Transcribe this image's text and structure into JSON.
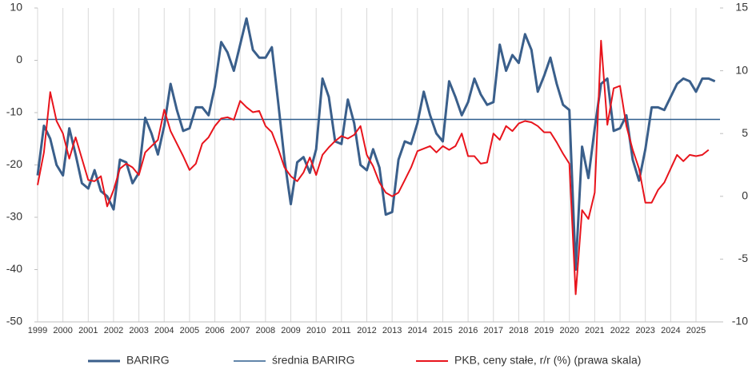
{
  "chart_data": {
    "type": "line",
    "categories": [
      "1999",
      null,
      null,
      null,
      "2000",
      null,
      null,
      null,
      "2001",
      null,
      null,
      null,
      "2002",
      null,
      null,
      null,
      "2003",
      null,
      null,
      null,
      "2004",
      null,
      null,
      null,
      "2005",
      null,
      null,
      null,
      "2006",
      null,
      null,
      null,
      "2007",
      null,
      null,
      null,
      "2008",
      null,
      null,
      null,
      "2009",
      null,
      null,
      null,
      "2010",
      null,
      null,
      null,
      "2011",
      null,
      null,
      null,
      "2012",
      null,
      null,
      null,
      "2013",
      null,
      null,
      null,
      "2014",
      null,
      null,
      null,
      "2015",
      null,
      null,
      null,
      "2016",
      null,
      null,
      null,
      "2017",
      null,
      null,
      null,
      "2018",
      null,
      null,
      null,
      "2019",
      null,
      null,
      null,
      "2020",
      null,
      null,
      null,
      "2021",
      null,
      null,
      null,
      "2022",
      null,
      null,
      null,
      "2023",
      null,
      null,
      null,
      "2024",
      null,
      null,
      null,
      "2025",
      null,
      null,
      null
    ],
    "series": [
      {
        "name": "BARIRG",
        "color": "#3a5f8b",
        "width": 3,
        "values": [
          -22,
          -12.5,
          -15,
          -20,
          -22,
          -13,
          -18,
          -23.5,
          -24.5,
          -21,
          -25,
          -26,
          -28.5,
          -19,
          -19.5,
          -23.5,
          -21.5,
          -11,
          -14,
          -18,
          -12.5,
          -4.5,
          -9.5,
          -13.5,
          -13,
          -9,
          -9,
          -10.5,
          -5,
          3.5,
          1.5,
          -2,
          3,
          8,
          2,
          0.5,
          0.5,
          2.5,
          -8,
          -19,
          -27.5,
          -19.5,
          -18.5,
          -21.5,
          -17,
          -3.5,
          -7,
          -15.5,
          -16,
          -7.5,
          -12,
          -20,
          -21,
          -17,
          -20.5,
          -29.5,
          -29,
          -19,
          -15.5,
          -16,
          -12,
          -6,
          -10.5,
          -14,
          -15.5,
          -4,
          -7,
          -10.5,
          -8,
          -3.5,
          -6.5,
          -8.5,
          -8,
          3,
          -2,
          1,
          -0.5,
          5,
          2,
          -6,
          -3,
          0.5,
          -4.5,
          -8.5,
          -9.5,
          -40,
          -16.5,
          -22.5,
          -13,
          -4.5,
          -3.5,
          -13.5,
          -13,
          -10.5,
          -19,
          -23,
          -17,
          -9,
          -9,
          -9.5,
          -7,
          -4.5,
          -3.5,
          -4,
          -6,
          -3.5,
          -3.5,
          -4
        ]
      },
      {
        "name": "średnia BARIRG",
        "color": "#2e5e8e",
        "width": 1.5,
        "value": -11.3
      },
      {
        "name": "PKB, ceny stałe, r/r (%) (prawa skala)",
        "color": "#e8141c",
        "width": 2,
        "axis": "y2",
        "values": [
          0.9,
          3.5,
          8.3,
          6,
          5,
          3,
          4.7,
          3,
          1.3,
          1.2,
          1.6,
          -0.8,
          0.5,
          2.2,
          2.6,
          2.3,
          1.7,
          3.5,
          4,
          4.5,
          6.9,
          5.2,
          4.2,
          3.2,
          2.1,
          2.6,
          4.2,
          4.7,
          5.6,
          6.2,
          6.3,
          6.1,
          7.6,
          7.1,
          6.7,
          6.8,
          5.6,
          5.1,
          3.8,
          2.3,
          1.6,
          1.2,
          1.9,
          3.1,
          1.7,
          3.3,
          3.9,
          4.4,
          4.8,
          4.6,
          4.9,
          5.6,
          3.3,
          2.4,
          1.1,
          0.3,
          0,
          0.3,
          1.3,
          2.3,
          3.6,
          3.8,
          4,
          3.5,
          4,
          3.7,
          4,
          5,
          3.2,
          3.2,
          2.6,
          2.7,
          5,
          4.5,
          5.6,
          5.2,
          5.8,
          6,
          5.9,
          5.6,
          5.1,
          5.1,
          4.3,
          3.4,
          2.6,
          -7.8,
          -1.1,
          -1.8,
          0.3,
          12.4,
          5.7,
          8.6,
          8.8,
          5.6,
          3.7,
          2.2,
          -0.5,
          -0.5,
          0.5,
          1.1,
          2.2,
          3.3,
          2.8,
          3.3,
          3.2,
          3.3,
          3.7,
          null
        ]
      }
    ],
    "ylim": [
      -50,
      10
    ],
    "yticks": [
      10,
      0,
      -10,
      -20,
      -30,
      -40,
      -50
    ],
    "y2lim": [
      -10,
      15
    ],
    "y2ticks": [
      15,
      10,
      5,
      0,
      -5,
      -10
    ],
    "grid": true,
    "legend": "bottom"
  }
}
